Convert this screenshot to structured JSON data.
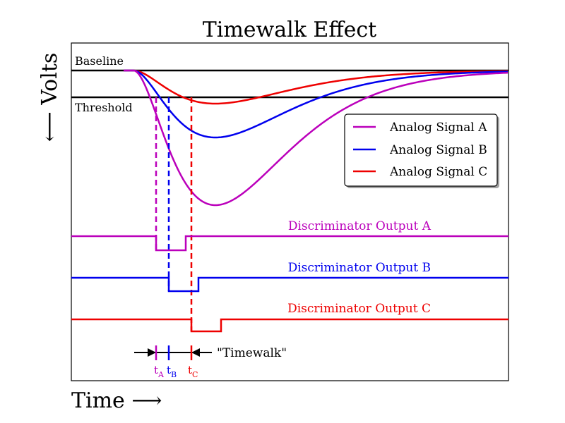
{
  "title": "Timewalk Effect",
  "axes": {
    "ylabel": "⟵ Volts",
    "xlabel": "Time ⟶"
  },
  "reference_lines": {
    "baseline_label": "Baseline",
    "threshold_label": "Threshold"
  },
  "legend": {
    "placement": "upper-right",
    "entries": [
      {
        "label": "Analog Signal A",
        "color": "#bb00bb"
      },
      {
        "label": "Analog Signal B",
        "color": "#0000ee"
      },
      {
        "label": "Analog Signal C",
        "color": "#ee0000"
      }
    ]
  },
  "discriminator_outputs": [
    {
      "label": "Discriminator Output A",
      "color": "#bb00bb"
    },
    {
      "label": "Discriminator Output B",
      "color": "#0000ee"
    },
    {
      "label": "Discriminator Output C",
      "color": "#ee0000"
    }
  ],
  "timewalk_annotation": {
    "label": "\"Timewalk\"",
    "ticks": [
      {
        "base": "t",
        "sub": "A",
        "color": "#bb00bb"
      },
      {
        "base": "t",
        "sub": "B",
        "color": "#0000ee"
      },
      {
        "base": "t",
        "sub": "C",
        "color": "#ee0000"
      }
    ]
  }
}
